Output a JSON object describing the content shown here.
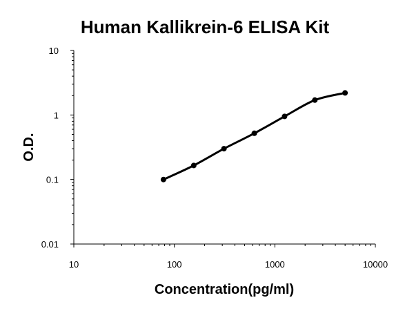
{
  "chart_data": {
    "type": "line",
    "title": "Human Kallikrein-6 ELISA Kit",
    "xlabel": "Concentration(pg/ml)",
    "ylabel": "O.D.",
    "xscale": "log",
    "yscale": "log",
    "xlim": [
      10,
      10000
    ],
    "ylim": [
      0.01,
      10
    ],
    "xticks": [
      "10",
      "100",
      "1000",
      "10000"
    ],
    "yticks": [
      "0.01",
      "0.1",
      "1",
      "10"
    ],
    "grid": false,
    "legend": "none",
    "series": [
      {
        "x": [
          78,
          156,
          312,
          625,
          1250,
          2500,
          5000
        ],
        "y": [
          0.1,
          0.165,
          0.3,
          0.52,
          0.95,
          1.7,
          2.2
        ],
        "color": "#000000"
      }
    ]
  }
}
